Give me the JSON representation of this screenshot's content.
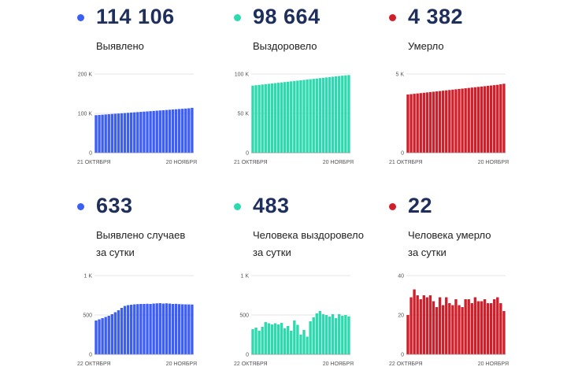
{
  "colors": {
    "blue": "#3d5ef5",
    "teal": "#2dd9ae",
    "red": "#cf1f2b",
    "heading": "#1f2f5c"
  },
  "panels": [
    {
      "value": "114 106",
      "label": [
        "Выявлено"
      ],
      "bullet_icon": "dot-icon",
      "chart_data": {
        "type": "bar",
        "color": "blue",
        "ylim": [
          0,
          200000
        ],
        "yticks": [
          "0",
          "100 K",
          "200 K"
        ],
        "xlabels": [
          "21 ОКТЯБРЯ",
          "20 НОЯБРЯ"
        ],
        "values": [
          95500,
          96100,
          96700,
          97300,
          97900,
          98500,
          99100,
          99700,
          100300,
          100900,
          101500,
          102100,
          102700,
          103300,
          103900,
          104500,
          105100,
          105700,
          106300,
          106900,
          107500,
          108100,
          108700,
          109300,
          109900,
          110500,
          111100,
          111700,
          112300,
          113000,
          114106
        ]
      }
    },
    {
      "value": "98 664",
      "label": [
        "Выздоровело"
      ],
      "bullet_icon": "dot-icon",
      "chart_data": {
        "type": "bar",
        "color": "teal",
        "ylim": [
          0,
          100000
        ],
        "yticks": [
          "0",
          "50 K",
          "100 K"
        ],
        "xlabels": [
          "21 ОКТЯБРЯ",
          "20 НОЯБРЯ"
        ],
        "values": [
          85300,
          85750,
          86200,
          86650,
          87100,
          87550,
          88000,
          88450,
          88900,
          89350,
          89800,
          90250,
          90700,
          91150,
          91600,
          92050,
          92500,
          92950,
          93400,
          93850,
          94300,
          94750,
          95200,
          95650,
          96100,
          96550,
          97000,
          97450,
          97900,
          98300,
          98664
        ]
      }
    },
    {
      "value": "4 382",
      "label": [
        "Умерло"
      ],
      "bullet_icon": "dot-icon",
      "chart_data": {
        "type": "bar",
        "color": "red",
        "ylim": [
          0,
          5000
        ],
        "yticks": [
          "0",
          "5 K"
        ],
        "xlabels": [
          "21 ОКТЯБРЯ",
          "20 НОЯБРЯ"
        ],
        "values": [
          3700,
          3722,
          3744,
          3766,
          3788,
          3810,
          3832,
          3854,
          3876,
          3898,
          3920,
          3942,
          3964,
          3986,
          4008,
          4030,
          4052,
          4074,
          4096,
          4118,
          4140,
          4162,
          4184,
          4206,
          4228,
          4250,
          4272,
          4294,
          4316,
          4350,
          4382
        ]
      }
    },
    {
      "value": "633",
      "label": [
        "Выявлено случаев",
        "за сутки"
      ],
      "bullet_icon": "dot-icon",
      "chart_data": {
        "type": "bar",
        "color": "blue",
        "ylim": [
          0,
          1000
        ],
        "yticks": [
          "0",
          "500",
          "1 K"
        ],
        "xlabels": [
          "22 ОКТЯБРЯ",
          "20 НОЯБРЯ"
        ],
        "values": [
          430,
          445,
          460,
          475,
          490,
          510,
          535,
          560,
          590,
          615,
          625,
          630,
          635,
          638,
          640,
          640,
          642,
          640,
          645,
          648,
          650,
          645,
          648,
          645,
          640,
          642,
          638,
          636,
          635,
          634,
          633
        ]
      }
    },
    {
      "value": "483",
      "label": [
        "Человека выздоровело",
        "за сутки"
      ],
      "bullet_icon": "dot-icon",
      "chart_data": {
        "type": "bar",
        "color": "teal",
        "ylim": [
          0,
          1000
        ],
        "yticks": [
          "0",
          "500",
          "1 K"
        ],
        "xlabels": [
          "22 ОКТЯБРЯ",
          "20 НОЯБРЯ"
        ],
        "values": [
          320,
          340,
          300,
          350,
          410,
          395,
          380,
          395,
          380,
          400,
          330,
          360,
          300,
          430,
          375,
          250,
          310,
          225,
          420,
          470,
          520,
          550,
          510,
          500,
          480,
          510,
          460,
          510,
          490,
          500,
          483
        ]
      }
    },
    {
      "value": "22",
      "label": [
        "Человека умерло",
        "за сутки"
      ],
      "bullet_icon": "dot-icon",
      "chart_data": {
        "type": "bar",
        "color": "red",
        "ylim": [
          0,
          40
        ],
        "yticks": [
          "0",
          "20",
          "40"
        ],
        "xlabels": [
          "22 ОКТЯБРЯ",
          "20 НОЯБРЯ"
        ],
        "values": [
          20,
          29,
          33,
          30,
          28,
          30,
          29,
          30,
          27,
          24,
          29,
          25,
          29,
          26,
          25,
          28,
          25,
          24,
          28,
          28,
          26,
          29,
          27,
          27,
          28,
          26,
          26,
          28,
          29,
          26,
          22
        ]
      }
    }
  ]
}
